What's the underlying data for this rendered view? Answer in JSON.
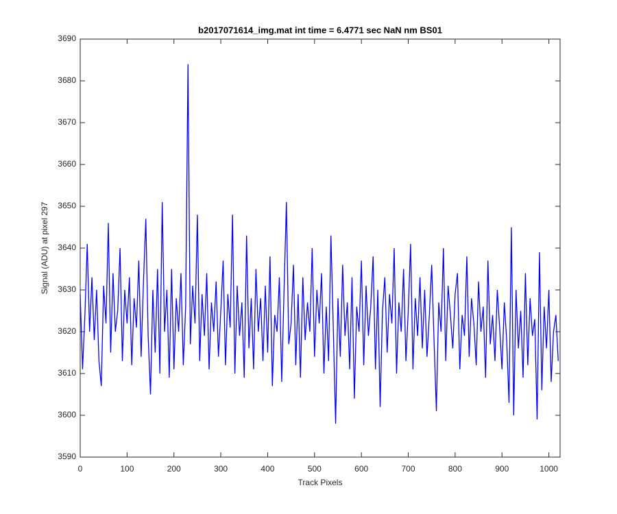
{
  "chart_data": {
    "type": "line",
    "title": "b2017071614_img.mat int time = 6.4771 sec  NaN nm BS01",
    "x_label": "Track Pixels",
    "y_label": "Signal (ADU) at pixel 297",
    "x": [
      0,
      5,
      10,
      15,
      20,
      25,
      30,
      35,
      40,
      45,
      50,
      55,
      60,
      65,
      70,
      75,
      80,
      85,
      90,
      95,
      100,
      105,
      110,
      115,
      120,
      125,
      130,
      135,
      140,
      145,
      150,
      155,
      160,
      165,
      170,
      175,
      180,
      185,
      190,
      195,
      200,
      205,
      210,
      215,
      220,
      225,
      230,
      235,
      240,
      245,
      250,
      255,
      260,
      265,
      270,
      275,
      280,
      285,
      290,
      295,
      300,
      305,
      310,
      315,
      320,
      325,
      330,
      335,
      340,
      345,
      350,
      355,
      360,
      365,
      370,
      375,
      380,
      385,
      390,
      395,
      400,
      405,
      410,
      415,
      420,
      425,
      430,
      435,
      440,
      445,
      450,
      455,
      460,
      465,
      470,
      475,
      480,
      485,
      490,
      495,
      500,
      505,
      510,
      515,
      520,
      525,
      530,
      535,
      540,
      545,
      550,
      555,
      560,
      565,
      570,
      575,
      580,
      585,
      590,
      595,
      600,
      605,
      610,
      615,
      620,
      625,
      630,
      635,
      640,
      645,
      650,
      655,
      660,
      665,
      670,
      675,
      680,
      685,
      690,
      695,
      700,
      705,
      710,
      715,
      720,
      725,
      730,
      735,
      740,
      745,
      750,
      755,
      760,
      765,
      770,
      775,
      780,
      785,
      790,
      795,
      800,
      805,
      810,
      815,
      820,
      825,
      830,
      835,
      840,
      845,
      850,
      855,
      860,
      865,
      870,
      875,
      880,
      885,
      890,
      895,
      900,
      905,
      910,
      915,
      920,
      925,
      930,
      935,
      940,
      945,
      950,
      955,
      960,
      965,
      970,
      975,
      980,
      985,
      990,
      995,
      1000,
      1005,
      1010,
      1015,
      1020
    ],
    "series": [
      {
        "name": "signal",
        "color": "#0000ff",
        "values": [
          3629,
          3611,
          3624,
          3641,
          3620,
          3633,
          3618,
          3630,
          3613,
          3607,
          3631,
          3622,
          3646,
          3615,
          3634,
          3620,
          3625,
          3640,
          3613,
          3630,
          3622,
          3633,
          3612,
          3628,
          3621,
          3637,
          3614,
          3632,
          3647,
          3619,
          3605,
          3630,
          3615,
          3635,
          3610,
          3651,
          3620,
          3630,
          3609,
          3635,
          3611,
          3628,
          3620,
          3634,
          3612,
          3626,
          3684,
          3617,
          3631,
          3622,
          3648,
          3613,
          3629,
          3619,
          3634,
          3611,
          3627,
          3620,
          3632,
          3614,
          3625,
          3637,
          3612,
          3629,
          3621,
          3648,
          3610,
          3631,
          3619,
          3627,
          3609,
          3643,
          3616,
          3628,
          3611,
          3635,
          3620,
          3628,
          3613,
          3631,
          3615,
          3638,
          3607,
          3624,
          3620,
          3633,
          3608,
          3630,
          3651,
          3617,
          3622,
          3636,
          3612,
          3629,
          3609,
          3633,
          3618,
          3627,
          3620,
          3640,
          3614,
          3630,
          3622,
          3634,
          3610,
          3626,
          3613,
          3643,
          3621,
          3598,
          3628,
          3614,
          3636,
          3619,
          3627,
          3611,
          3633,
          3604,
          3626,
          3620,
          3637,
          3612,
          3631,
          3619,
          3626,
          3638,
          3611,
          3630,
          3602,
          3625,
          3633,
          3615,
          3629,
          3622,
          3640,
          3610,
          3627,
          3620,
          3635,
          3613,
          3625,
          3641,
          3611,
          3628,
          3619,
          3633,
          3616,
          3630,
          3614,
          3624,
          3636,
          3618,
          3601,
          3627,
          3620,
          3640,
          3613,
          3631,
          3624,
          3616,
          3629,
          3634,
          3611,
          3624,
          3619,
          3638,
          3614,
          3628,
          3622,
          3612,
          3632,
          3620,
          3626,
          3609,
          3637,
          3617,
          3624,
          3613,
          3630,
          3621,
          3611,
          3627,
          3618,
          3603,
          3645,
          3600,
          3630,
          3616,
          3625,
          3609,
          3634,
          3612,
          3628,
          3619,
          3623,
          3599,
          3639,
          3606,
          3626,
          3616,
          3630,
          3608,
          3620,
          3624,
          3613
        ]
      }
    ],
    "xlim": [
      0,
      1024
    ],
    "ylim": [
      3590,
      3690
    ],
    "xticks": [
      0,
      100,
      200,
      300,
      400,
      500,
      600,
      700,
      800,
      900,
      1000
    ],
    "yticks": [
      3590,
      3600,
      3610,
      3620,
      3630,
      3640,
      3650,
      3660,
      3670,
      3680,
      3690
    ]
  }
}
